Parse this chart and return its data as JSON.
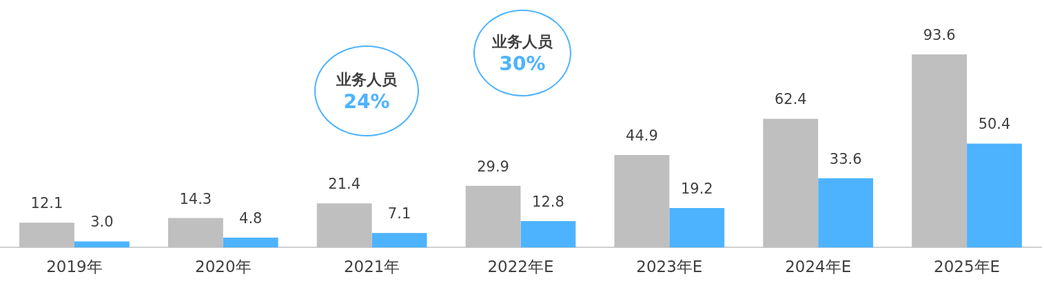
{
  "chart_data": {
    "type": "bar",
    "categories": [
      "2019年",
      "2020年",
      "2021年",
      "2022年E",
      "2023年E",
      "2024年E",
      "2025年E"
    ],
    "series": [
      {
        "color": "#bfbfbf",
        "values": [
          12.1,
          14.3,
          21.4,
          29.9,
          44.9,
          62.4,
          93.6
        ],
        "value_labels": [
          "12.1",
          "14.3",
          "21.4",
          "29.9",
          "44.9",
          "62.4",
          "93.6"
        ]
      },
      {
        "color": "#4db3ff",
        "values": [
          3.0,
          4.8,
          7.1,
          12.8,
          19.2,
          33.6,
          50.4
        ],
        "value_labels": [
          "3.0",
          "4.8",
          "7.1",
          "12.8",
          "19.2",
          "33.6",
          "50.4"
        ]
      }
    ],
    "tick_labels": "x",
    "grid": false,
    "legend": false,
    "annotations": [
      "业务人员\n24%",
      "业务人员\n30%"
    ]
  }
}
